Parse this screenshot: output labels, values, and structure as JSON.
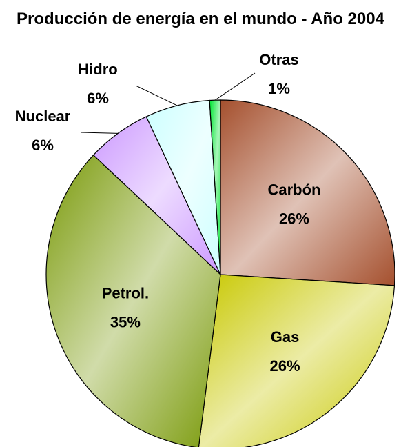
{
  "chart_data": {
    "type": "pie",
    "title": "Producción de energía en el mundo - Año 2004",
    "categories": [
      "Carbón",
      "Gas",
      "Petrol.",
      "Nuclear",
      "Hidro",
      "Otras"
    ],
    "values": [
      26,
      26,
      35,
      6,
      6,
      1
    ],
    "value_labels": [
      "26%",
      "26%",
      "35%",
      "6%",
      "6%",
      "1%"
    ],
    "colors": [
      "#a5502e",
      "#c8c800",
      "#7a9a0a",
      "#cc99ff",
      "#ccffff",
      "#00e633"
    ]
  }
}
